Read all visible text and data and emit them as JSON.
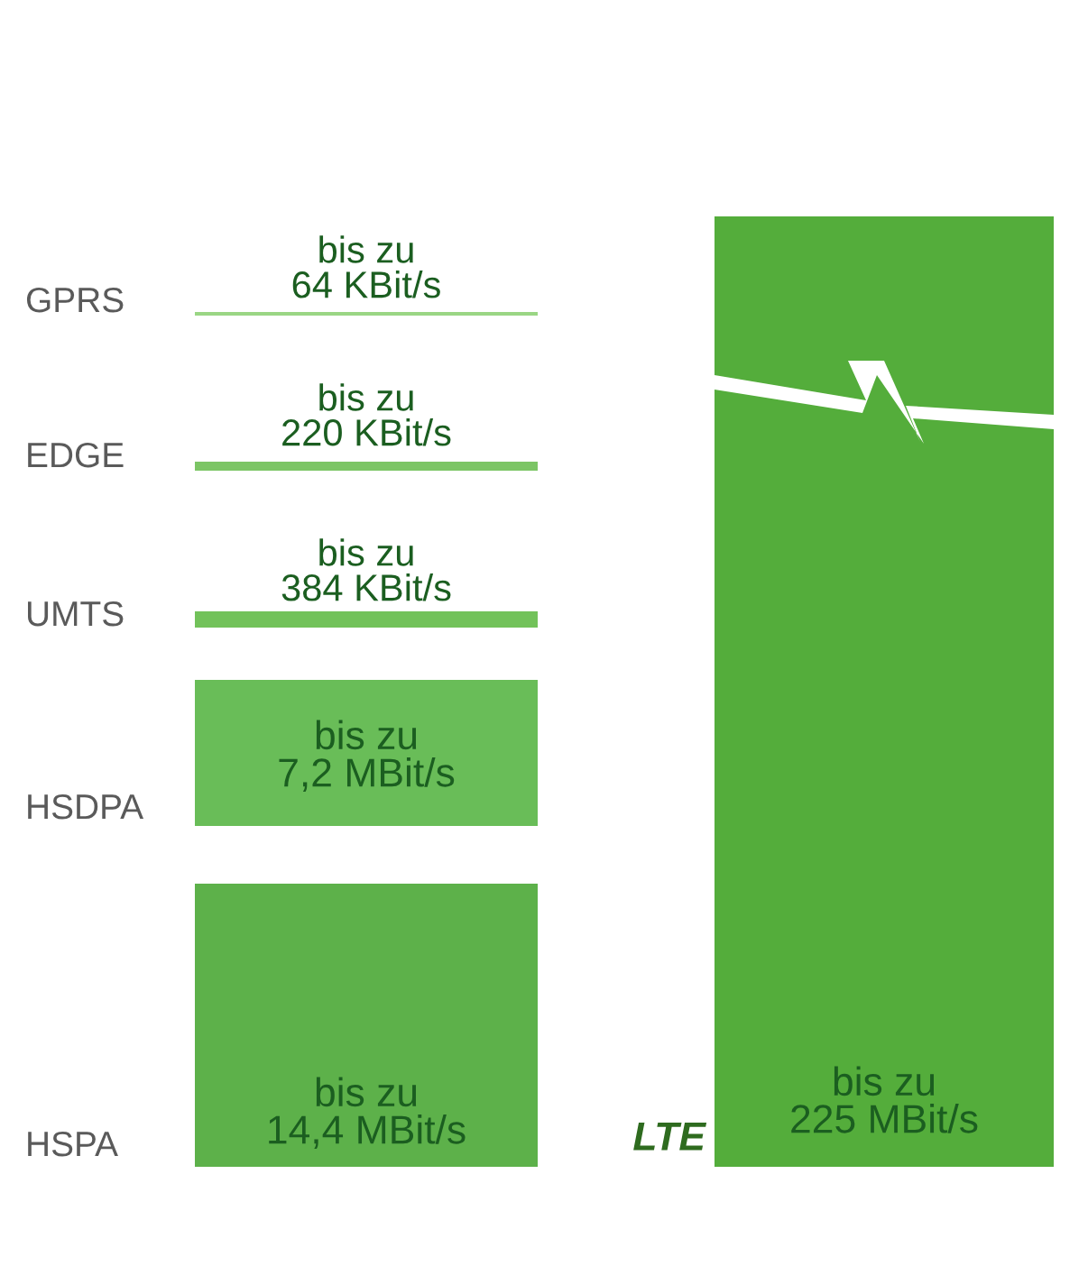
{
  "chart_data": {
    "type": "other",
    "categories": [
      "GPRS",
      "EDGE",
      "UMTS",
      "HSDPA",
      "HSPA",
      "LTE"
    ],
    "values": [
      64,
      220,
      384,
      7.2,
      14.4,
      225
    ],
    "value_labels": [
      "bis zu\n64 KBit/s",
      "bis zu\n220 KBit/s",
      "bis zu\n384 KBit/s",
      "bis zu\n7,2 MBit/s",
      "bis zu\n14,4 MBit/s",
      "bis zu\n225 MBit/s"
    ],
    "colors": [
      "#9ad684",
      "#7cc565",
      "#72c25a",
      "#69bd58",
      "#5db14a",
      "#54ad3b"
    ]
  }
}
